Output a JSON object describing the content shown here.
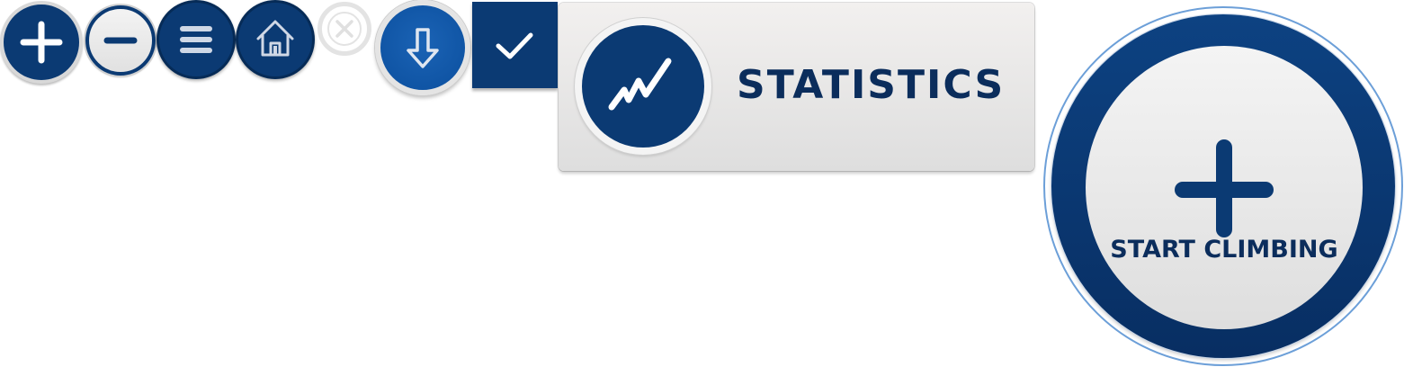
{
  "colors": {
    "primary_navy": "#0b3a73",
    "button_blue": "#0b4f9e",
    "label_navy": "#0b2d5c",
    "light_face": "#eeeeee",
    "outer_ring_blue": "#6c9fd8"
  },
  "icons": {
    "add": "plus-icon",
    "remove": "minus-icon",
    "menu": "hamburger-menu-icon",
    "home": "home-icon",
    "close": "close-x-icon",
    "download": "arrow-down-icon",
    "confirm": "checkmark-icon",
    "statistics": "line-chart-icon",
    "start": "plus-icon"
  },
  "statistics_card": {
    "label": "STATISTICS"
  },
  "start_button": {
    "label": "START CLIMBING"
  }
}
